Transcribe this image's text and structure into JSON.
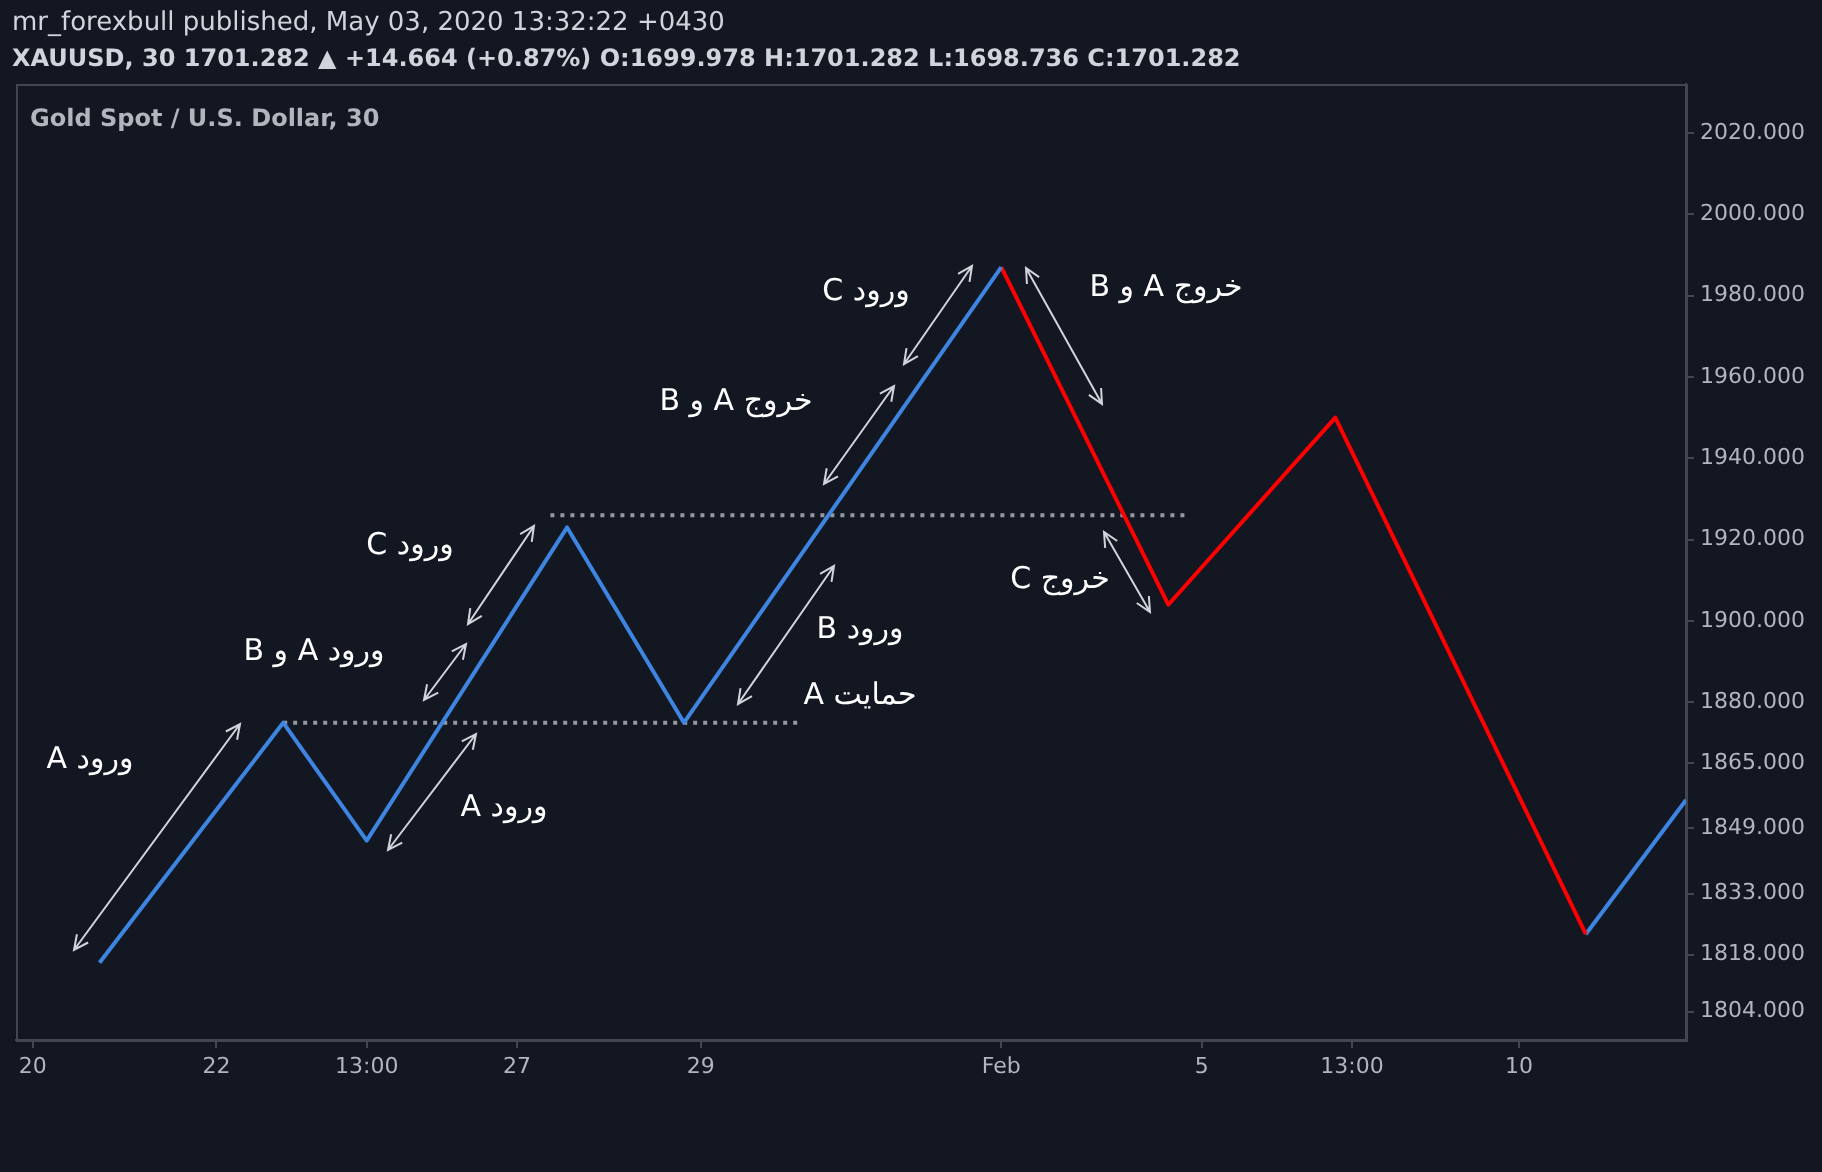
{
  "chart_data": {
    "type": "line",
    "title": "mr_forexbull published, May 03, 2020 13:32:22 +0430",
    "subtitle": "XAUUSD, 30  1701.282 ▲ +14.664 (+0.87%) O:1699.978 H:1701.282 L:1698.736 C:1701.282",
    "annotations": [
      "Gold Spot / U.S. Dollar, 30",
      "ورود A",
      "ورود A و B",
      "ورود C",
      "ورود A",
      "خروج A و B",
      "ورود C",
      "خروج A و B",
      "خروج C",
      "ورود B",
      "حمایت A"
    ],
    "categories": [
      null,
      "20",
      null,
      null,
      null,
      null,
      null,
      null,
      null,
      null,
      null,
      null,
      "22",
      null,
      null,
      null,
      null,
      null,
      null,
      null,
      null,
      "13:00",
      null,
      null,
      null,
      null,
      null,
      null,
      null,
      null,
      "27",
      null,
      null,
      null,
      null,
      null,
      null,
      null,
      null,
      null,
      null,
      "29",
      null,
      null,
      null,
      null,
      null,
      null,
      null,
      null,
      null,
      null,
      null,
      null,
      null,
      null,
      null,
      null,
      null,
      "Feb",
      null,
      null,
      null,
      null,
      null,
      null,
      null,
      null,
      null,
      null,
      null,
      "5",
      null,
      null,
      null,
      null,
      null,
      null,
      null,
      null,
      "13:00",
      null,
      null,
      null,
      null,
      null,
      null,
      null,
      null,
      null,
      "10",
      null,
      null,
      null,
      null,
      null,
      null,
      null,
      null,
      null,
      null
    ],
    "ylim": [
      1797,
      2032
    ],
    "yticks": [
      {
        "value": 1804,
        "label": "1804.000"
      },
      {
        "value": 1818,
        "label": "1818.000"
      },
      {
        "value": 1833,
        "label": "1833.000"
      },
      {
        "value": 1849,
        "label": "1849.000"
      },
      {
        "value": 1865,
        "label": "1865.000"
      },
      {
        "value": 1880,
        "label": "1880.000"
      },
      {
        "value": 1900,
        "label": "1900.000"
      },
      {
        "value": 1920,
        "label": "1920.000"
      },
      {
        "value": 1940,
        "label": "1940.000"
      },
      {
        "value": 1960,
        "label": "1960.000"
      },
      {
        "value": 1980,
        "label": "1980.000"
      },
      {
        "value": 2000,
        "label": "2000.000"
      },
      {
        "value": 2020,
        "label": "2020.000"
      }
    ],
    "marker": "none",
    "series": [
      {
        "color": "#3d85e0",
        "values": [
          null,
          null,
          null,
          null,
          null,
          1816,
          null,
          null,
          null,
          null,
          null,
          null,
          null,
          null,
          null,
          null,
          1875,
          null,
          null,
          null,
          null,
          1846,
          null,
          null,
          null,
          null,
          null,
          null,
          null,
          null,
          null,
          null,
          null,
          1923,
          null,
          null,
          null,
          null,
          null,
          null,
          1875,
          null,
          null,
          null,
          null,
          null,
          null,
          null,
          null,
          null,
          null,
          null,
          null,
          null,
          null,
          null,
          null,
          null,
          null,
          1987,
          null,
          null,
          null,
          null,
          null,
          null,
          null,
          null,
          null,
          null,
          null,
          null,
          null,
          null,
          null,
          null,
          null,
          null,
          null,
          null,
          null,
          null,
          null,
          null,
          null,
          null,
          null,
          null,
          null,
          null,
          null,
          null,
          null,
          null,
          null,
          null,
          null,
          null,
          null,
          null,
          null
        ]
      },
      {
        "color": "#ff0000",
        "values": [
          null,
          null,
          null,
          null,
          null,
          null,
          null,
          null,
          null,
          null,
          null,
          null,
          null,
          null,
          null,
          null,
          null,
          null,
          null,
          null,
          null,
          null,
          null,
          null,
          null,
          null,
          null,
          null,
          null,
          null,
          null,
          null,
          null,
          null,
          null,
          null,
          null,
          null,
          null,
          null,
          null,
          null,
          null,
          null,
          null,
          null,
          null,
          null,
          null,
          null,
          null,
          null,
          null,
          null,
          null,
          null,
          null,
          null,
          null,
          1987,
          null,
          null,
          null,
          null,
          null,
          null,
          null,
          null,
          null,
          1904,
          null,
          null,
          null,
          null,
          null,
          null,
          null,
          null,
          null,
          1950,
          null,
          null,
          null,
          null,
          null,
          null,
          null,
          null,
          null,
          null,
          null,
          null,
          null,
          null,
          1823,
          null,
          null,
          null,
          null,
          null,
          null
        ]
      },
      {
        "color": "#3d85e0",
        "values": [
          null,
          null,
          null,
          null,
          null,
          null,
          null,
          null,
          null,
          null,
          null,
          null,
          null,
          null,
          null,
          null,
          null,
          null,
          null,
          null,
          null,
          null,
          null,
          null,
          null,
          null,
          null,
          null,
          null,
          null,
          null,
          null,
          null,
          null,
          null,
          null,
          null,
          null,
          null,
          null,
          null,
          null,
          null,
          null,
          null,
          null,
          null,
          null,
          null,
          null,
          null,
          null,
          null,
          null,
          null,
          null,
          null,
          null,
          null,
          null,
          null,
          null,
          null,
          null,
          null,
          null,
          null,
          null,
          null,
          null,
          null,
          null,
          null,
          null,
          null,
          null,
          null,
          null,
          null,
          null,
          null,
          null,
          null,
          null,
          null,
          null,
          null,
          null,
          null,
          null,
          null,
          null,
          null,
          null,
          1823,
          null,
          null,
          null,
          null,
          null,
          1856
        ]
      },
      {
        "color": "#9598a1",
        "line_style": "dotted",
        "values": [
          null,
          null,
          null,
          null,
          null,
          null,
          null,
          null,
          null,
          null,
          null,
          null,
          null,
          null,
          null,
          null,
          1875,
          null,
          null,
          null,
          null,
          null,
          null,
          null,
          null,
          null,
          null,
          null,
          null,
          null,
          null,
          null,
          null,
          null,
          null,
          null,
          null,
          null,
          null,
          null,
          null,
          null,
          null,
          null,
          null,
          null,
          null,
          1875,
          null,
          null,
          null,
          null,
          null,
          null,
          null,
          null,
          null,
          null,
          null,
          null,
          null,
          null,
          null,
          null,
          null,
          null,
          null,
          null,
          null,
          null,
          null,
          null,
          null,
          null,
          null,
          null,
          null,
          null,
          null,
          null,
          null,
          null,
          null,
          null,
          null,
          null,
          null,
          null,
          null,
          null,
          null,
          null,
          null,
          null,
          null,
          null,
          null,
          null,
          null,
          null,
          null
        ]
      },
      {
        "color": "#9598a1",
        "line_style": "dotted",
        "values": [
          null,
          null,
          null,
          null,
          null,
          null,
          null,
          null,
          null,
          null,
          null,
          null,
          null,
          null,
          null,
          null,
          null,
          null,
          null,
          null,
          null,
          null,
          null,
          null,
          null,
          null,
          null,
          null,
          null,
          null,
          null,
          null,
          1926,
          null,
          null,
          null,
          null,
          null,
          null,
          null,
          null,
          null,
          null,
          null,
          null,
          null,
          null,
          null,
          null,
          null,
          null,
          null,
          null,
          null,
          null,
          null,
          null,
          null,
          null,
          null,
          null,
          null,
          null,
          null,
          null,
          null,
          null,
          null,
          null,
          null,
          1926,
          null,
          null,
          null,
          null,
          null,
          null,
          null,
          null,
          null,
          null,
          null,
          null,
          null,
          null,
          null,
          null,
          null,
          null,
          null,
          null,
          null,
          null,
          null,
          null,
          null,
          null,
          null,
          null,
          null,
          null
        ]
      }
    ]
  }
}
